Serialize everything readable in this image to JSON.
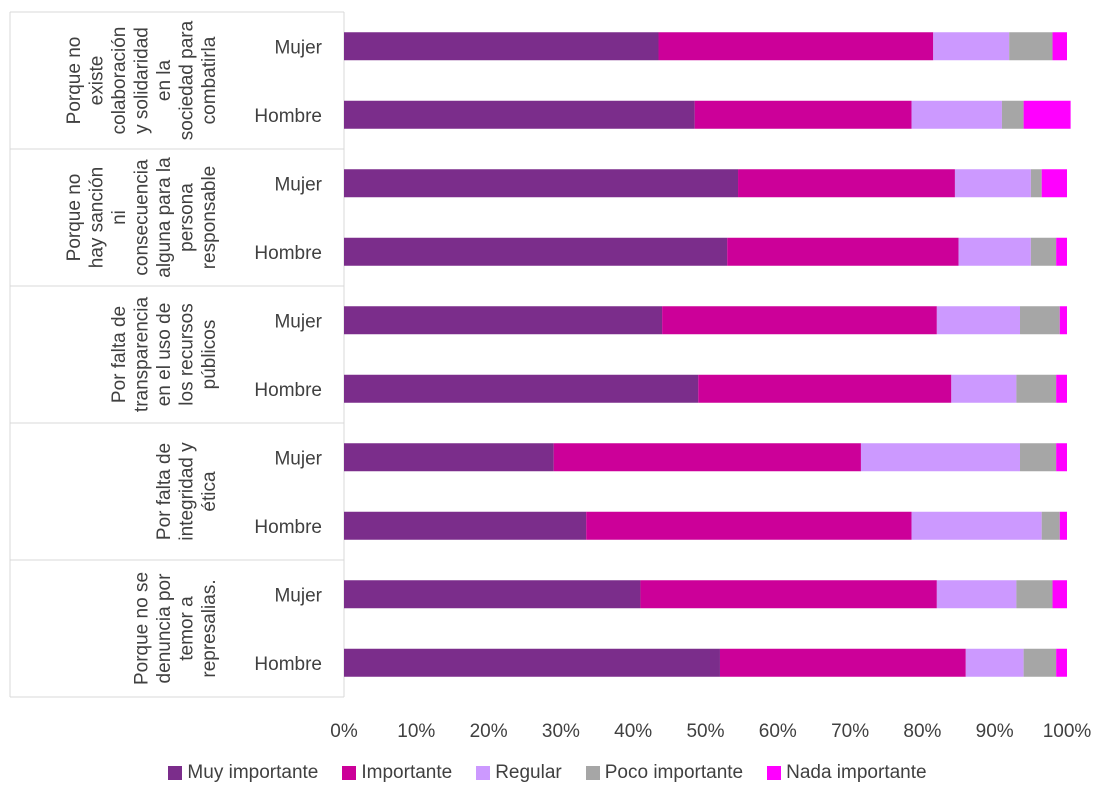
{
  "chart_data": {
    "type": "bar",
    "orientation": "horizontal",
    "stacked": "percent",
    "groups": [
      {
        "label": "Porque no existe colaboración y solidaridad en la sociedad para combatirla",
        "label_lines": [
          "Porque no",
          "existe",
          "colaboración",
          "y solidaridad",
          "en la",
          "sociedad para",
          "combatirla"
        ]
      },
      {
        "label": "Porque no hay sanción ni consecuencia alguna para la persona responsable",
        "label_lines": [
          "Porque no",
          "hay sanción",
          "ni",
          "consecuencia",
          "alguna para la",
          "persona",
          "responsable"
        ]
      },
      {
        "label": "Por falta de transparencia en el uso de los recursos públicos",
        "label_lines": [
          "Por falta de",
          "transparencia",
          "en el uso de",
          "los recursos",
          "públicos"
        ]
      },
      {
        "label": "Por falta de integridad y ética",
        "label_lines": [
          "Por falta de",
          "integridad y",
          "ética"
        ]
      },
      {
        "label": "Porque no se denuncia por temor a represalias.",
        "label_lines": [
          "Porque no se",
          "denuncia por",
          "temor a",
          "represalias."
        ]
      }
    ],
    "categories": [
      "Mujer",
      "Hombre",
      "Mujer",
      "Hombre",
      "Mujer",
      "Hombre",
      "Mujer",
      "Hombre",
      "Mujer",
      "Hombre"
    ],
    "series": [
      {
        "name": "Muy importante",
        "color": "#7B2D8B",
        "values": [
          43.5,
          48.5,
          54.5,
          53,
          44,
          49,
          29,
          33.5,
          41,
          52
        ]
      },
      {
        "name": "Importante",
        "color": "#CC0099",
        "values": [
          38,
          30,
          30,
          32,
          38,
          35,
          42.5,
          45,
          41,
          34
        ]
      },
      {
        "name": "Regular",
        "color": "#CC99FF",
        "values": [
          10.5,
          12.5,
          10.5,
          10,
          11.5,
          9,
          22,
          18,
          11,
          8
        ]
      },
      {
        "name": "Poco importante",
        "color": "#A6A6A6",
        "values": [
          6,
          3,
          1.5,
          3.5,
          5.5,
          5.5,
          5,
          2.5,
          5,
          4.5
        ]
      },
      {
        "name": "Nada importante",
        "color": "#FF00FF",
        "values": [
          2,
          6.5,
          3.5,
          1.5,
          1,
          1.5,
          1.5,
          1,
          2,
          1.5
        ]
      }
    ],
    "xlim": [
      0,
      100
    ],
    "xticks": [
      "0%",
      "10%",
      "20%",
      "30%",
      "40%",
      "50%",
      "60%",
      "70%",
      "80%",
      "90%",
      "100%"
    ],
    "grid": false,
    "legend": "bottom"
  }
}
